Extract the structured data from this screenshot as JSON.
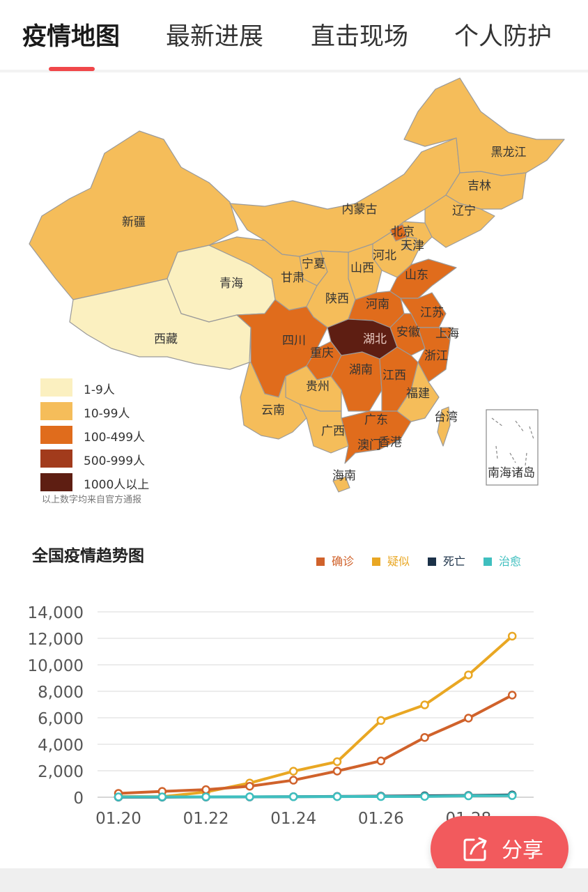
{
  "tabs": [
    {
      "label": "疫情地图",
      "active": true
    },
    {
      "label": "最新进展",
      "active": false
    },
    {
      "label": "直击现场",
      "active": false
    },
    {
      "label": "个人防护",
      "active": false
    }
  ],
  "map": {
    "legend": [
      {
        "label": "1-9人",
        "color": "#fbf0c0"
      },
      {
        "label": "10-99人",
        "color": "#f5bd5a"
      },
      {
        "label": "100-499人",
        "color": "#e06c1c"
      },
      {
        "label": "500-999人",
        "color": "#a23b1c"
      },
      {
        "label": "1000人以上",
        "color": "#5e1e12"
      }
    ],
    "source_note": "以上数字均来自官方通报",
    "provinces": [
      "黑龙江",
      "吉林",
      "辽宁",
      "内蒙古",
      "新疆",
      "北京",
      "天津",
      "河北",
      "宁夏",
      "山西",
      "甘肃",
      "青海",
      "山东",
      "陕西",
      "河南",
      "江苏",
      "西藏",
      "四川",
      "湖北",
      "安徽",
      "上海",
      "重庆",
      "浙江",
      "湖南",
      "江西",
      "贵州",
      "福建",
      "云南",
      "台湾",
      "广西",
      "广东",
      "香港",
      "澳门",
      "海南"
    ],
    "inset_label": "南海诸岛"
  },
  "chart": {
    "title": "全国疫情趋势图",
    "chart_data": {
      "type": "line",
      "x": [
        "01.20",
        "01.21",
        "01.22",
        "01.23",
        "01.24",
        "01.25",
        "01.26",
        "01.27",
        "01.28",
        "01.29"
      ],
      "x_tick_labels": [
        "01.20",
        "01.22",
        "01.24",
        "01.26",
        "01.28"
      ],
      "ylim": [
        0,
        14000
      ],
      "y_ticks": [
        "0",
        "2,000",
        "4,000",
        "6,000",
        "8,000",
        "10,000",
        "12,000",
        "14,000"
      ],
      "grid": true,
      "legend_position": "top-right",
      "series": [
        {
          "name": "确诊",
          "color": "#d0622b",
          "values": [
            291,
            440,
            571,
            830,
            1287,
            1975,
            2744,
            4515,
            5974,
            7711
          ]
        },
        {
          "name": "疑似",
          "color": "#e9a723",
          "values": [
            54,
            37,
            393,
            1072,
            1965,
            2684,
            5794,
            6973,
            9239,
            12167
          ]
        },
        {
          "name": "死亡",
          "color": "#1b3148",
          "values": [
            6,
            9,
            17,
            25,
            41,
            56,
            80,
            106,
            132,
            170
          ]
        },
        {
          "name": "治愈",
          "color": "#3fbfbf",
          "values": [
            25,
            25,
            28,
            34,
            38,
            49,
            51,
            60,
            103,
            124
          ]
        }
      ]
    }
  },
  "share_button": {
    "label": "分享"
  }
}
